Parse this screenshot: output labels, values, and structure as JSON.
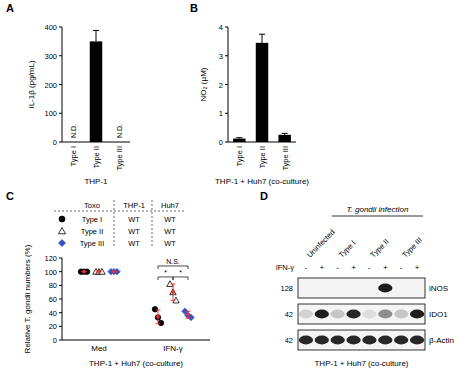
{
  "chart_data": [
    {
      "type": "bar",
      "panel": "A",
      "categories": [
        "Type I",
        "Type II",
        "Type III"
      ],
      "values": [
        null,
        350,
        null
      ],
      "errors": [
        null,
        38,
        null
      ],
      "value_labels": [
        "N.D.",
        null,
        "N.D."
      ],
      "data_labels": true,
      "ylabel": "IL-1β (pg/mL)",
      "xlabel": "THP-1",
      "color": "#000000",
      "ylim": [
        0,
        400
      ],
      "yticks": [
        0,
        100,
        200,
        300,
        400
      ]
    },
    {
      "type": "bar",
      "panel": "B",
      "categories": [
        "Type I",
        "Type II",
        "Type III"
      ],
      "values": [
        0.12,
        3.45,
        0.25
      ],
      "errors": [
        0.03,
        0.3,
        0.05
      ],
      "ylabel": "NO₂ (μM)",
      "xlabel": "THP-1 + Huh7 (co-culture)",
      "color": "#000000",
      "ylim": [
        0,
        4
      ],
      "yticks": [
        0,
        1,
        2,
        3,
        4
      ]
    },
    {
      "type": "scatter",
      "panel": "C",
      "categories": [
        "Med",
        "IFN-γ"
      ],
      "ylabel": "Relative T. gondii numbers (%)",
      "xlabel": "THP-1 + Huh7 (co-culture)",
      "ylim": [
        0,
        120
      ],
      "yticks": [
        0,
        20,
        40,
        60,
        80,
        100,
        120
      ],
      "legend_table": {
        "headers": [
          "Toxo",
          "THP-1",
          "Huh7"
        ]
      },
      "mean_color": "#e8312a",
      "series": [
        {
          "name": "Type I",
          "cells": [
            "WT",
            "WT"
          ],
          "marker": "circle",
          "color": "#000000",
          "values": [
            [
              100,
              100,
              100
            ],
            [
              45,
              33,
              25
            ]
          ],
          "mean": [
            100,
            34
          ],
          "error": [
            0,
            10
          ]
        },
        {
          "name": "Type II",
          "cells": [
            "WT",
            "WT"
          ],
          "marker": "open-triangle",
          "color": "#000000",
          "values": [
            [
              100,
              100,
              100
            ],
            [
              82,
              70,
              58
            ]
          ],
          "mean": [
            100,
            70
          ],
          "error": [
            0,
            12
          ]
        },
        {
          "name": "Type III",
          "cells": [
            "WT",
            "WT"
          ],
          "marker": "diamond",
          "color": "#3a50c8",
          "values": [
            [
              100,
              100,
              100
            ],
            [
              42,
              36,
              33
            ]
          ],
          "mean": [
            100,
            37
          ],
          "error": [
            0,
            5
          ]
        }
      ],
      "annotations": [
        {
          "label": "*",
          "category": 1,
          "from": 0,
          "to": 1
        },
        {
          "label": "*",
          "category": 1,
          "from": 1,
          "to": 2
        },
        {
          "label": "N.S.",
          "category": 1,
          "from": 0,
          "to": 2
        }
      ]
    },
    {
      "type": "blot",
      "panel": "D",
      "categories": [
        "Uninfected",
        "Type I",
        "Type II",
        "Type III"
      ],
      "group_label": "T. gondii infection",
      "group_span": [
        1,
        3
      ],
      "treatment": "IFN-γ",
      "treatment_labels": [
        "-",
        "+"
      ],
      "bands": [
        {
          "name": "iNOS",
          "mw": 128,
          "values": [
            0,
            0,
            0,
            0,
            0,
            0.95,
            0,
            0
          ]
        },
        {
          "name": "IDO1",
          "mw": 42,
          "values": [
            0.15,
            0.95,
            0.2,
            0.9,
            0.1,
            0.45,
            0.2,
            0.95
          ]
        },
        {
          "name": "β-Actin",
          "mw": 42,
          "values": [
            0.9,
            0.9,
            0.9,
            0.9,
            0.9,
            0.9,
            0.9,
            0.9
          ]
        }
      ],
      "xlabel": "THP-1 + Huh7 (co-culture)"
    }
  ]
}
